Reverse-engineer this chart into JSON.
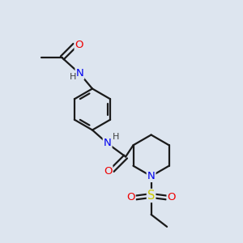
{
  "bg_color": "#dde5ef",
  "atom_colors": {
    "C": "#1a1a1a",
    "N": "#0000ee",
    "O": "#ee0000",
    "S": "#cccc00",
    "H": "#404040"
  },
  "bond_color": "#1a1a1a",
  "bond_width": 1.6,
  "font_size": 9
}
